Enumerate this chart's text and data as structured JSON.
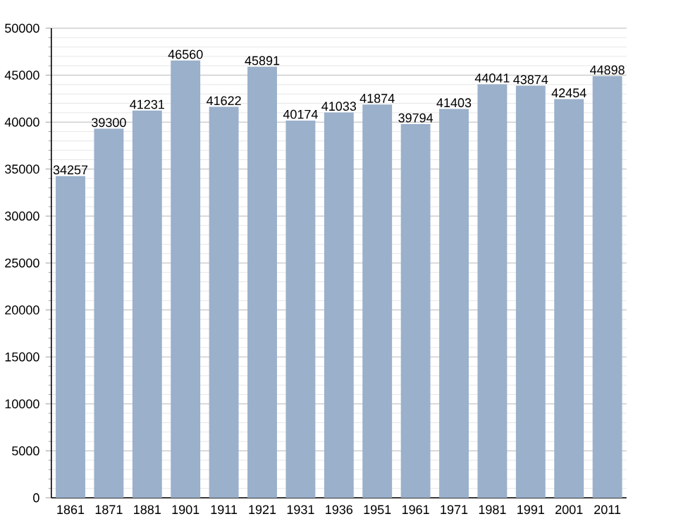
{
  "chart_data": {
    "type": "bar",
    "categories": [
      "1861",
      "1871",
      "1881",
      "1901",
      "1911",
      "1921",
      "1931",
      "1936",
      "1951",
      "1961",
      "1971",
      "1981",
      "1991",
      "2001",
      "2011"
    ],
    "values": [
      34257,
      39300,
      41231,
      46560,
      41622,
      45891,
      40174,
      41033,
      41874,
      39794,
      41403,
      44041,
      43874,
      42454,
      44898
    ],
    "color": "#9ab0cb",
    "ylim": [
      0,
      50000
    ],
    "yticks": [
      0,
      5000,
      10000,
      15000,
      20000,
      25000,
      30000,
      35000,
      40000,
      45000,
      50000
    ],
    "grid": "y",
    "data_labels": true
  }
}
